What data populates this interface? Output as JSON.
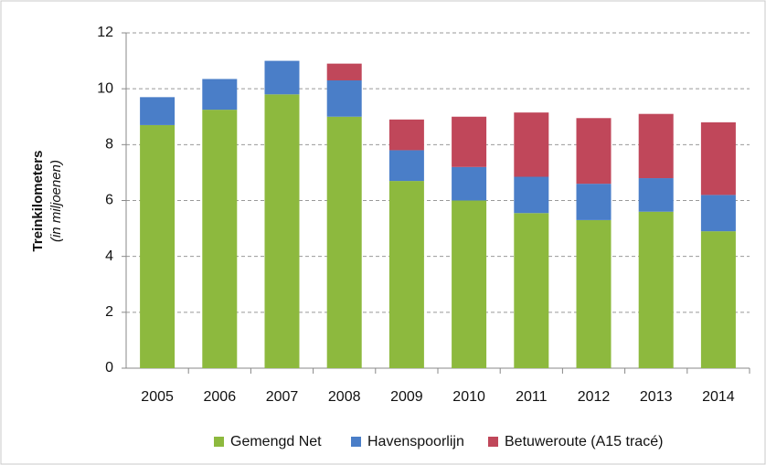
{
  "chart_data": {
    "type": "stacked_bar",
    "y_label": "Treinkilometers",
    "y_label_note": "(in miljoenen)",
    "categories": [
      "2005",
      "2006",
      "2007",
      "2008",
      "2009",
      "2010",
      "2011",
      "2012",
      "2013",
      "2014"
    ],
    "series": [
      {
        "name": "Gemengd Net",
        "color": "#8db93e",
        "values": [
          8.7,
          9.25,
          9.8,
          9.0,
          6.7,
          6.0,
          5.55,
          5.3,
          5.6,
          4.9
        ]
      },
      {
        "name": "Havenspoorlijn",
        "color": "#4a7ec8",
        "values": [
          1.0,
          1.1,
          1.2,
          1.3,
          1.1,
          1.2,
          1.3,
          1.3,
          1.2,
          1.3
        ]
      },
      {
        "name": "Betuweroute (A15 tracé)",
        "color": "#c0475a",
        "values": [
          0,
          0,
          0,
          0.6,
          1.1,
          1.8,
          2.3,
          2.35,
          2.3,
          2.6
        ]
      }
    ],
    "ylim": [
      0,
      12
    ],
    "yticks": [
      0,
      2,
      4,
      6,
      8,
      10,
      12
    ],
    "grid": true,
    "legend": "bottom"
  }
}
